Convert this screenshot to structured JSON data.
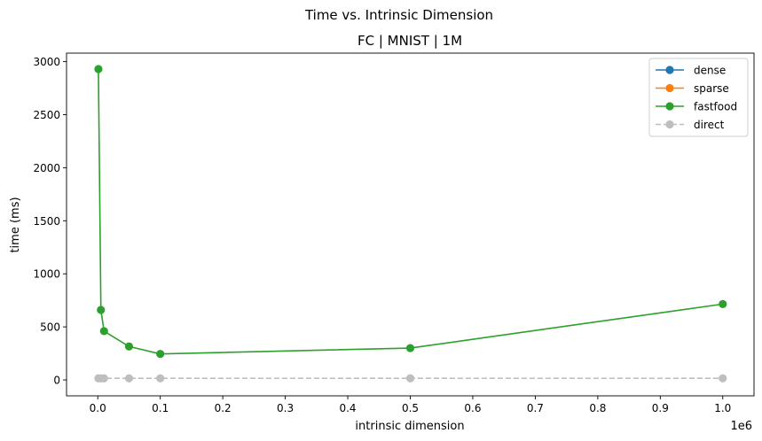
{
  "suptitle": "Time vs. Intrinsic Dimension",
  "chart_data": {
    "type": "line",
    "title": "FC | MNIST | 1M",
    "xlabel": "intrinsic dimension",
    "ylabel": "time (ms)",
    "x_offset_label": "1e6",
    "xlim": [
      -50000,
      1050000
    ],
    "ylim": [
      -150,
      3080
    ],
    "x_tick_values": [
      0,
      100000,
      200000,
      300000,
      400000,
      500000,
      600000,
      700000,
      800000,
      900000,
      1000000
    ],
    "x_tick_labels": [
      "0.0",
      "0.1",
      "0.2",
      "0.3",
      "0.4",
      "0.5",
      "0.6",
      "0.7",
      "0.8",
      "0.9",
      "1.0"
    ],
    "y_tick_values": [
      0,
      500,
      1000,
      1500,
      2000,
      2500,
      3000
    ],
    "y_tick_labels": [
      "0",
      "500",
      "1000",
      "1500",
      "2000",
      "2500",
      "3000"
    ],
    "grid": false,
    "legend_position": "upper right",
    "series": [
      {
        "name": "dense",
        "color": "#1f77b4",
        "style": "solid",
        "marker": "circle",
        "x": [],
        "y": []
      },
      {
        "name": "sparse",
        "color": "#ff7f0e",
        "style": "solid",
        "marker": "circle",
        "x": [],
        "y": []
      },
      {
        "name": "fastfood",
        "color": "#2ca02c",
        "style": "solid",
        "marker": "circle",
        "x": [
          1000,
          5000,
          10000,
          50000,
          100000,
          500000,
          1000000
        ],
        "y": [
          2930,
          660,
          460,
          315,
          245,
          300,
          715
        ]
      },
      {
        "name": "direct",
        "color": "#a9a9a9",
        "style": "dashed",
        "marker": "circle",
        "x": [
          1000,
          5000,
          10000,
          50000,
          100000,
          500000,
          1000000
        ],
        "y": [
          15,
          15,
          15,
          15,
          15,
          15,
          15
        ]
      }
    ]
  }
}
